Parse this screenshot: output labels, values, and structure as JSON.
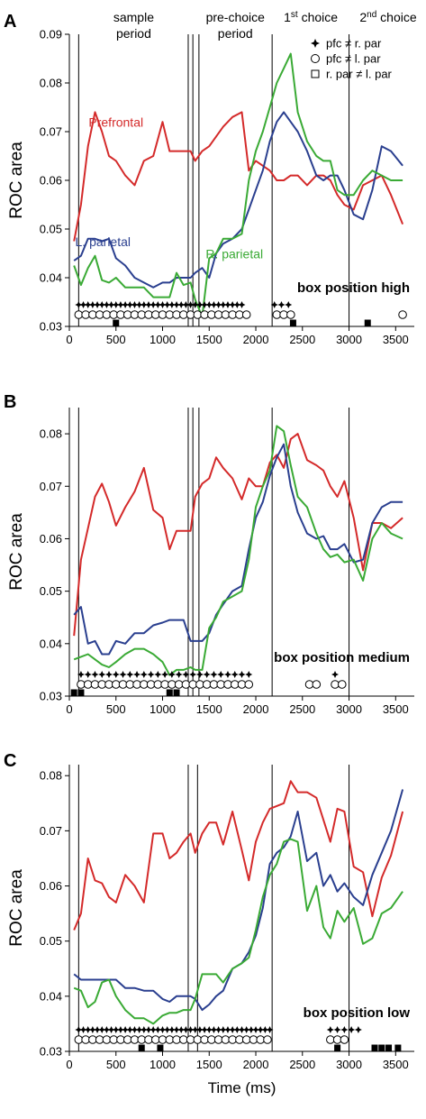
{
  "colors": {
    "pfc": "#d42a2a",
    "lpar": "#2a3f8f",
    "rpar": "#3aaa35"
  },
  "x_axis_label": "Time (ms)",
  "period_labels": {
    "sample": [
      "sample",
      "period"
    ],
    "prechoice": [
      "pre-choice",
      "period"
    ],
    "first_choice": {
      "num": "1",
      "sup": "st",
      "rest": " choice"
    },
    "second_choice": {
      "num": "2",
      "sup": "nd",
      "rest": " choice"
    }
  },
  "legend": [
    {
      "symbol": "star",
      "text": "pfc ≠ r. par"
    },
    {
      "symbol": "circle",
      "text": "pfc ≠ l. par"
    },
    {
      "symbol": "square",
      "text": "r. par ≠ l. par"
    }
  ],
  "chart_data": [
    {
      "type": "line",
      "panel": "A",
      "ylabel": "ROC area",
      "xlabel": "",
      "xlim": [
        0,
        3700
      ],
      "ylim": [
        0.03,
        0.09
      ],
      "xticks": [
        0,
        500,
        1000,
        1500,
        2000,
        2500,
        3000,
        3500
      ],
      "yticks": [
        0.03,
        0.04,
        0.05,
        0.06,
        0.07,
        0.08,
        0.09
      ],
      "ytick_labels": [
        "0.03",
        "0.04",
        "0.05",
        "0.06",
        "0.07",
        "0.08",
        "0.09"
      ],
      "vlines": [
        100,
        1275,
        1325,
        1390,
        2175,
        3000
      ],
      "box_label": "box position high",
      "series_labels": [
        {
          "text": "Prefrontal",
          "color_key": "pfc",
          "x": 500,
          "y": 0.071
        },
        {
          "text": "L. parietal",
          "color_key": "lpar",
          "x": 360,
          "y": 0.0465
        },
        {
          "text": "R. parietal",
          "color_key": "rpar",
          "x": 1770,
          "y": 0.044
        }
      ],
      "x": [
        50,
        125,
        200,
        275,
        350,
        425,
        500,
        600,
        700,
        800,
        900,
        1000,
        1075,
        1150,
        1225,
        1300,
        1350,
        1425,
        1500,
        1575,
        1650,
        1750,
        1850,
        1925,
        2000,
        2075,
        2150,
        2225,
        2300,
        2375,
        2450,
        2550,
        2650,
        2725,
        2800,
        2875,
        2950,
        3050,
        3150,
        3250,
        3350,
        3450,
        3575
      ],
      "series": [
        {
          "name": "Prefrontal",
          "color_key": "pfc",
          "values": [
            0.0475,
            0.055,
            0.067,
            0.074,
            0.07,
            0.065,
            0.064,
            0.061,
            0.059,
            0.064,
            0.065,
            0.072,
            0.066,
            0.066,
            0.066,
            0.066,
            0.064,
            0.066,
            0.067,
            0.069,
            0.071,
            0.073,
            0.074,
            0.062,
            0.064,
            0.063,
            0.062,
            0.06,
            0.06,
            0.061,
            0.061,
            0.059,
            0.061,
            0.061,
            0.06,
            0.057,
            0.055,
            0.054,
            0.059,
            0.06,
            0.061,
            0.057,
            0.051
          ]
        },
        {
          "name": "L. parietal",
          "color_key": "lpar",
          "values": [
            0.0435,
            0.0445,
            0.048,
            0.048,
            0.0475,
            0.048,
            0.044,
            0.0425,
            0.04,
            0.039,
            0.038,
            0.039,
            0.039,
            0.04,
            0.04,
            0.04,
            0.041,
            0.042,
            0.04,
            0.045,
            0.047,
            0.048,
            0.05,
            0.054,
            0.058,
            0.062,
            0.068,
            0.072,
            0.074,
            0.072,
            0.07,
            0.066,
            0.061,
            0.06,
            0.061,
            0.061,
            0.058,
            0.053,
            0.052,
            0.058,
            0.067,
            0.066,
            0.063
          ]
        },
        {
          "name": "R. parietal",
          "color_key": "rpar",
          "values": [
            0.0425,
            0.0385,
            0.042,
            0.0445,
            0.0395,
            0.039,
            0.04,
            0.038,
            0.038,
            0.038,
            0.036,
            0.036,
            0.036,
            0.041,
            0.0385,
            0.039,
            0.0355,
            0.032,
            0.044,
            0.045,
            0.048,
            0.048,
            0.049,
            0.06,
            0.066,
            0.07,
            0.075,
            0.08,
            0.083,
            0.086,
            0.074,
            0.068,
            0.065,
            0.064,
            0.064,
            0.058,
            0.057,
            0.057,
            0.06,
            0.062,
            0.061,
            0.06,
            0.06
          ]
        }
      ],
      "markers": {
        "stars": [
          100,
          150,
          200,
          250,
          300,
          350,
          400,
          450,
          500,
          550,
          600,
          650,
          700,
          750,
          800,
          850,
          900,
          950,
          1000,
          1050,
          1100,
          1150,
          1200,
          1250,
          1300,
          1350,
          1400,
          1450,
          1500,
          1550,
          1600,
          1650,
          1700,
          1750,
          1800,
          1850,
          2200,
          2275,
          2350
        ],
        "circles": [
          100,
          175,
          250,
          325,
          400,
          475,
          550,
          625,
          700,
          775,
          850,
          925,
          1000,
          1075,
          1150,
          1225,
          1300,
          1375,
          1450,
          1525,
          1600,
          1675,
          1750,
          1825,
          1900,
          2225,
          2300,
          2375,
          3575
        ],
        "squares": [
          500,
          2400,
          3200
        ]
      }
    },
    {
      "type": "line",
      "panel": "B",
      "ylabel": "ROC area",
      "xlabel": "",
      "xlim": [
        0,
        3700
      ],
      "ylim": [
        0.03,
        0.085
      ],
      "xticks": [
        0,
        500,
        1000,
        1500,
        2000,
        2500,
        3000,
        3500
      ],
      "yticks": [
        0.03,
        0.04,
        0.05,
        0.06,
        0.07,
        0.08
      ],
      "ytick_labels": [
        "0.03",
        "0.04",
        "0.05",
        "0.06",
        "0.07",
        "0.08"
      ],
      "vlines": [
        100,
        1275,
        1325,
        1390,
        2175,
        3000
      ],
      "box_label": "box position medium",
      "series_labels": [],
      "x": [
        50,
        125,
        200,
        275,
        350,
        425,
        500,
        600,
        700,
        800,
        900,
        1000,
        1075,
        1150,
        1225,
        1300,
        1350,
        1425,
        1500,
        1575,
        1650,
        1750,
        1850,
        1925,
        2000,
        2075,
        2150,
        2225,
        2300,
        2375,
        2450,
        2550,
        2650,
        2725,
        2800,
        2875,
        2950,
        3050,
        3150,
        3250,
        3350,
        3450,
        3575
      ],
      "series": [
        {
          "name": "Prefrontal",
          "color_key": "pfc",
          "values": [
            0.0415,
            0.056,
            0.062,
            0.068,
            0.0705,
            0.067,
            0.0625,
            0.066,
            0.069,
            0.0735,
            0.0655,
            0.064,
            0.058,
            0.0615,
            0.0615,
            0.0615,
            0.068,
            0.0705,
            0.0715,
            0.0755,
            0.0735,
            0.0715,
            0.0675,
            0.0715,
            0.07,
            0.07,
            0.0745,
            0.076,
            0.0735,
            0.079,
            0.08,
            0.075,
            0.074,
            0.073,
            0.07,
            0.068,
            0.071,
            0.064,
            0.054,
            0.063,
            0.063,
            0.062,
            0.064
          ]
        },
        {
          "name": "L. parietal",
          "color_key": "lpar",
          "values": [
            0.0455,
            0.047,
            0.04,
            0.0405,
            0.038,
            0.038,
            0.0405,
            0.04,
            0.042,
            0.042,
            0.0435,
            0.044,
            0.0445,
            0.0445,
            0.0445,
            0.0405,
            0.0405,
            0.0405,
            0.042,
            0.0455,
            0.0475,
            0.05,
            0.051,
            0.058,
            0.064,
            0.067,
            0.072,
            0.0755,
            0.078,
            0.07,
            0.065,
            0.061,
            0.06,
            0.0605,
            0.058,
            0.058,
            0.059,
            0.0555,
            0.056,
            0.063,
            0.066,
            0.067,
            0.067
          ]
        },
        {
          "name": "R. parietal",
          "color_key": "rpar",
          "values": [
            0.037,
            0.0375,
            0.038,
            0.037,
            0.036,
            0.0355,
            0.0365,
            0.038,
            0.039,
            0.039,
            0.038,
            0.0365,
            0.034,
            0.035,
            0.035,
            0.0355,
            0.035,
            0.035,
            0.043,
            0.045,
            0.048,
            0.049,
            0.05,
            0.056,
            0.066,
            0.07,
            0.073,
            0.0815,
            0.0805,
            0.074,
            0.068,
            0.066,
            0.061,
            0.058,
            0.0565,
            0.057,
            0.0555,
            0.056,
            0.052,
            0.06,
            0.063,
            0.061,
            0.06
          ]
        }
      ],
      "markers": {
        "stars": [
          125,
          200,
          275,
          350,
          425,
          500,
          575,
          650,
          725,
          800,
          875,
          950,
          1025,
          1100,
          1175,
          1250,
          1325,
          1400,
          1475,
          1550,
          1625,
          1700,
          1775,
          1850,
          1925,
          2850
        ],
        "circles": [
          125,
          200,
          275,
          350,
          425,
          500,
          575,
          650,
          725,
          800,
          875,
          950,
          1025,
          1100,
          1175,
          1250,
          1325,
          1400,
          1475,
          1550,
          1625,
          1700,
          1775,
          1850,
          1925,
          2575,
          2650,
          2850,
          2925
        ],
        "squares": [
          50,
          125,
          1075,
          1150
        ]
      }
    },
    {
      "type": "line",
      "panel": "C",
      "ylabel": "ROC area",
      "xlabel": "Time (ms)",
      "xlim": [
        0,
        3700
      ],
      "ylim": [
        0.03,
        0.082
      ],
      "xticks": [
        0,
        500,
        1000,
        1500,
        2000,
        2500,
        3000,
        3500
      ],
      "yticks": [
        0.03,
        0.04,
        0.05,
        0.06,
        0.07,
        0.08
      ],
      "ytick_labels": [
        "0.03",
        "0.04",
        "0.05",
        "0.06",
        "0.07",
        "0.08"
      ],
      "vlines": [
        100,
        1275,
        1375,
        2175,
        3000
      ],
      "box_label": "box position low",
      "series_labels": [],
      "x": [
        50,
        125,
        200,
        275,
        350,
        425,
        500,
        600,
        700,
        800,
        900,
        1000,
        1075,
        1150,
        1225,
        1300,
        1350,
        1425,
        1500,
        1575,
        1650,
        1750,
        1850,
        1925,
        2000,
        2075,
        2150,
        2225,
        2300,
        2375,
        2450,
        2550,
        2650,
        2725,
        2800,
        2875,
        2950,
        3050,
        3150,
        3250,
        3350,
        3450,
        3575
      ],
      "series": [
        {
          "name": "Prefrontal",
          "color_key": "pfc",
          "values": [
            0.052,
            0.055,
            0.065,
            0.061,
            0.0605,
            0.058,
            0.057,
            0.062,
            0.06,
            0.057,
            0.0695,
            0.0695,
            0.065,
            0.066,
            0.068,
            0.0695,
            0.066,
            0.0695,
            0.0715,
            0.0715,
            0.0675,
            0.0735,
            0.0665,
            0.061,
            0.068,
            0.0715,
            0.074,
            0.0745,
            0.075,
            0.079,
            0.077,
            0.077,
            0.076,
            0.072,
            0.068,
            0.074,
            0.0735,
            0.0635,
            0.0625,
            0.0545,
            0.0615,
            0.0655,
            0.0735
          ]
        },
        {
          "name": "L. parietal",
          "color_key": "lpar",
          "values": [
            0.044,
            0.043,
            0.043,
            0.043,
            0.043,
            0.043,
            0.043,
            0.0415,
            0.0415,
            0.041,
            0.041,
            0.0395,
            0.039,
            0.04,
            0.04,
            0.04,
            0.0395,
            0.0375,
            0.0385,
            0.04,
            0.041,
            0.045,
            0.046,
            0.048,
            0.051,
            0.056,
            0.064,
            0.066,
            0.067,
            0.069,
            0.0735,
            0.0645,
            0.066,
            0.06,
            0.062,
            0.059,
            0.0605,
            0.058,
            0.0565,
            0.062,
            0.066,
            0.07,
            0.0775
          ]
        },
        {
          "name": "R. parietal",
          "color_key": "rpar",
          "values": [
            0.0415,
            0.041,
            0.038,
            0.039,
            0.0425,
            0.043,
            0.04,
            0.0375,
            0.036,
            0.036,
            0.035,
            0.0365,
            0.037,
            0.037,
            0.0375,
            0.0375,
            0.0395,
            0.044,
            0.044,
            0.044,
            0.0425,
            0.045,
            0.046,
            0.047,
            0.052,
            0.058,
            0.062,
            0.064,
            0.068,
            0.0685,
            0.068,
            0.0555,
            0.06,
            0.0525,
            0.0505,
            0.0555,
            0.0535,
            0.056,
            0.0495,
            0.0505,
            0.055,
            0.056,
            0.059
          ]
        }
      ],
      "markers": {
        "stars": [
          100,
          150,
          200,
          250,
          300,
          350,
          400,
          450,
          500,
          550,
          600,
          650,
          700,
          750,
          800,
          850,
          900,
          950,
          1000,
          1050,
          1100,
          1150,
          1200,
          1250,
          1300,
          1350,
          1400,
          1450,
          1500,
          1550,
          1600,
          1650,
          1700,
          1750,
          1800,
          1850,
          1900,
          1950,
          2000,
          2050,
          2100,
          2150,
          2800,
          2875,
          2950,
          3025,
          3100
        ],
        "circles": [
          100,
          175,
          250,
          325,
          400,
          475,
          550,
          625,
          700,
          775,
          850,
          925,
          1000,
          1075,
          1150,
          1225,
          1300,
          1375,
          1450,
          1525,
          1600,
          1675,
          1750,
          1825,
          1900,
          1975,
          2050,
          2125,
          2800,
          2875,
          2950
        ],
        "squares": [
          775,
          975,
          2875,
          3275,
          3350,
          3425,
          3525
        ]
      }
    }
  ]
}
